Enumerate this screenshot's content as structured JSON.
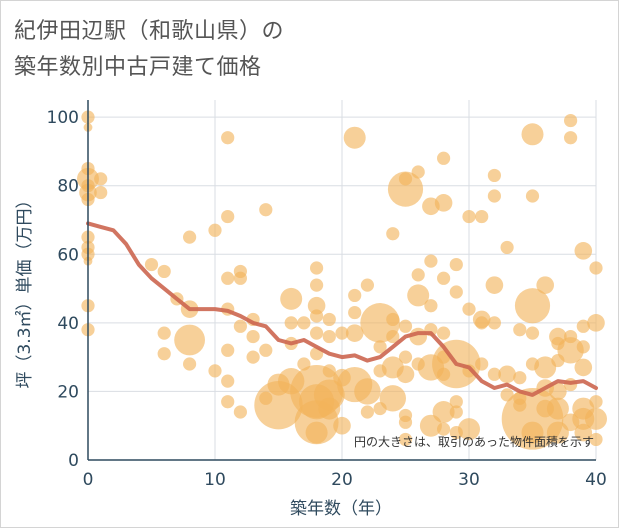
{
  "chart_data": {
    "type": "scatter",
    "title_lines": [
      "紀伊田辺駅（和歌山県）の",
      "築年数別中古戸建て価格"
    ],
    "xlabel": "築年数（年）",
    "ylabel": "坪（3.3㎡）単価（万円）",
    "xlim": [
      0,
      40
    ],
    "ylim": [
      0,
      105
    ],
    "xticks": [
      "0",
      "10",
      "20",
      "30",
      "40"
    ],
    "yticks": [
      "0",
      "20",
      "40",
      "60",
      "80",
      "100"
    ],
    "grid": true,
    "note": "円の大きさは、取引のあった物件面積を示す",
    "colors": {
      "bubble": "#f2b35a",
      "trend": "#cc6650",
      "grid": "#d9dde3",
      "axis": "#2f4a5e"
    },
    "points": [
      [
        0,
        100,
        3
      ],
      [
        0,
        97,
        2
      ],
      [
        0,
        85,
        3
      ],
      [
        0,
        82,
        5
      ],
      [
        0,
        80,
        3
      ],
      [
        0,
        78,
        4
      ],
      [
        0,
        76,
        3
      ],
      [
        0,
        65,
        3
      ],
      [
        0,
        62,
        3
      ],
      [
        0,
        60,
        3
      ],
      [
        0,
        58,
        2
      ],
      [
        0,
        45,
        3
      ],
      [
        0,
        38,
        3
      ],
      [
        1,
        82,
        3
      ],
      [
        1,
        78,
        3
      ],
      [
        5,
        57,
        3
      ],
      [
        6,
        55,
        3
      ],
      [
        6,
        37,
        3
      ],
      [
        6,
        31,
        3
      ],
      [
        7,
        47,
        3
      ],
      [
        8,
        65,
        3
      ],
      [
        8,
        44,
        4
      ],
      [
        8,
        35,
        7
      ],
      [
        8,
        28,
        3
      ],
      [
        10,
        67,
        3
      ],
      [
        10,
        26,
        3
      ],
      [
        11,
        94,
        3
      ],
      [
        11,
        71,
        3
      ],
      [
        11,
        53,
        3
      ],
      [
        11,
        44,
        3
      ],
      [
        11,
        32,
        3
      ],
      [
        11,
        23,
        3
      ],
      [
        11,
        17,
        3
      ],
      [
        12,
        55,
        3
      ],
      [
        12,
        53,
        3
      ],
      [
        12,
        39,
        3
      ],
      [
        12,
        14,
        3
      ],
      [
        13,
        41,
        3
      ],
      [
        13,
        36,
        3
      ],
      [
        13,
        30,
        3
      ],
      [
        14,
        73,
        3
      ],
      [
        14,
        32,
        3
      ],
      [
        14,
        18,
        3
      ],
      [
        15,
        16,
        11
      ],
      [
        15,
        22,
        5
      ],
      [
        16,
        47,
        5
      ],
      [
        16,
        40,
        3
      ],
      [
        16,
        34,
        3
      ],
      [
        16,
        23,
        6
      ],
      [
        17,
        40,
        3
      ],
      [
        17,
        28,
        3
      ],
      [
        18,
        56,
        3
      ],
      [
        18,
        51,
        3
      ],
      [
        18,
        45,
        4
      ],
      [
        18,
        42,
        3
      ],
      [
        18,
        37,
        3
      ],
      [
        18,
        31,
        3
      ],
      [
        18,
        20,
        12
      ],
      [
        18,
        17,
        8
      ],
      [
        18,
        11,
        10
      ],
      [
        18,
        8,
        5
      ],
      [
        19,
        41,
        3
      ],
      [
        19,
        36,
        3
      ],
      [
        19,
        26,
        3
      ],
      [
        19,
        19,
        7
      ],
      [
        19,
        15,
        5
      ],
      [
        20,
        37,
        3
      ],
      [
        20,
        24,
        4
      ],
      [
        20,
        10,
        4
      ],
      [
        21,
        94,
        5
      ],
      [
        21,
        48,
        3
      ],
      [
        21,
        43,
        3
      ],
      [
        21,
        37,
        4
      ],
      [
        21,
        22,
        8
      ],
      [
        22,
        51,
        3
      ],
      [
        22,
        20,
        6
      ],
      [
        22,
        14,
        3
      ],
      [
        23,
        40,
        9
      ],
      [
        23,
        33,
        3
      ],
      [
        23,
        26,
        3
      ],
      [
        23,
        15,
        3
      ],
      [
        24,
        66,
        3
      ],
      [
        24,
        41,
        3
      ],
      [
        24,
        36,
        3
      ],
      [
        24,
        27,
        5
      ],
      [
        24,
        18,
        6
      ],
      [
        25,
        79,
        8
      ],
      [
        25,
        82,
        3
      ],
      [
        25,
        39,
        3
      ],
      [
        25,
        30,
        3
      ],
      [
        25,
        25,
        4
      ],
      [
        25,
        13,
        3
      ],
      [
        25,
        11,
        3
      ],
      [
        25,
        6,
        3
      ],
      [
        26,
        84,
        3
      ],
      [
        26,
        54,
        3
      ],
      [
        26,
        48,
        5
      ],
      [
        26,
        36,
        4
      ],
      [
        26,
        28,
        3
      ],
      [
        27,
        74,
        4
      ],
      [
        27,
        58,
        3
      ],
      [
        27,
        45,
        3
      ],
      [
        27,
        38,
        3
      ],
      [
        27,
        27,
        6
      ],
      [
        27,
        10,
        5
      ],
      [
        28,
        88,
        3
      ],
      [
        28,
        75,
        4
      ],
      [
        28,
        53,
        3
      ],
      [
        28,
        37,
        3
      ],
      [
        28,
        30,
        3
      ],
      [
        28,
        25,
        3
      ],
      [
        28,
        14,
        5
      ],
      [
        28,
        9,
        3
      ],
      [
        29,
        57,
        3
      ],
      [
        29,
        49,
        3
      ],
      [
        29,
        28,
        11
      ],
      [
        29,
        17,
        3
      ],
      [
        29,
        14,
        3
      ],
      [
        29,
        8,
        3
      ],
      [
        30,
        71,
        3
      ],
      [
        30,
        44,
        3
      ],
      [
        30,
        26,
        3
      ],
      [
        30,
        9,
        5
      ],
      [
        31,
        71,
        3
      ],
      [
        31,
        41,
        4
      ],
      [
        31,
        40,
        3
      ],
      [
        31,
        28,
        3
      ],
      [
        32,
        83,
        3
      ],
      [
        32,
        77,
        3
      ],
      [
        32,
        51,
        4
      ],
      [
        32,
        40,
        3
      ],
      [
        32,
        25,
        3
      ],
      [
        33,
        62,
        3
      ],
      [
        33,
        25,
        4
      ],
      [
        33,
        19,
        3
      ],
      [
        34,
        38,
        3
      ],
      [
        34,
        24,
        3
      ],
      [
        34,
        18,
        3
      ],
      [
        34,
        16,
        3
      ],
      [
        35,
        95,
        5
      ],
      [
        35,
        77,
        3
      ],
      [
        35,
        45,
        8
      ],
      [
        35,
        37,
        3
      ],
      [
        35,
        28,
        3
      ],
      [
        35,
        12,
        14
      ],
      [
        35,
        8,
        5
      ],
      [
        36,
        51,
        4
      ],
      [
        36,
        27,
        5
      ],
      [
        36,
        21,
        4
      ],
      [
        36,
        15,
        4
      ],
      [
        37,
        36,
        4
      ],
      [
        37,
        34,
        3
      ],
      [
        37,
        29,
        3
      ],
      [
        37,
        20,
        4
      ],
      [
        37,
        15,
        5
      ],
      [
        37,
        8,
        5
      ],
      [
        38,
        99,
        3
      ],
      [
        38,
        94,
        3
      ],
      [
        38,
        36,
        3
      ],
      [
        38,
        32,
        6
      ],
      [
        38,
        22,
        3
      ],
      [
        38,
        11,
        4
      ],
      [
        39,
        61,
        4
      ],
      [
        39,
        39,
        3
      ],
      [
        39,
        33,
        3
      ],
      [
        39,
        27,
        4
      ],
      [
        39,
        15,
        5
      ],
      [
        39,
        12,
        5
      ],
      [
        39,
        8,
        4
      ],
      [
        40,
        56,
        3
      ],
      [
        40,
        40,
        4
      ],
      [
        40,
        17,
        3
      ],
      [
        40,
        12,
        5
      ],
      [
        40,
        6,
        3
      ]
    ],
    "trend": {
      "x": [
        0,
        1,
        2,
        3,
        4,
        5,
        6,
        7,
        8,
        9,
        10,
        11,
        12,
        13,
        14,
        15,
        16,
        17,
        18,
        19,
        20,
        21,
        22,
        23,
        24,
        25,
        26,
        27,
        28,
        29,
        30,
        31,
        32,
        33,
        34,
        35,
        36,
        37,
        38,
        39,
        40
      ],
      "y": [
        69,
        68,
        67,
        63,
        57,
        53,
        50,
        47,
        44,
        44,
        44,
        43.5,
        42,
        40,
        39,
        35,
        34,
        35,
        33,
        31,
        30,
        30.5,
        29,
        30,
        33,
        36,
        37,
        37,
        33,
        28,
        27,
        23,
        21,
        22,
        20,
        19,
        21,
        23,
        22.5,
        23,
        21
      ]
    }
  }
}
